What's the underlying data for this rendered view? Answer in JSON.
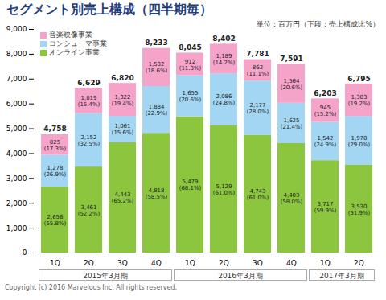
{
  "chart_data": {
    "type": "bar",
    "title": "セグメント別売上構成（四半期毎）",
    "subtitle": "単位：百万円（下段：売上構成比%）",
    "caption": "Copyright (c) 2016 Marvelous Inc. All rights reserved.",
    "categories": [
      "1Q",
      "2Q",
      "3Q",
      "4Q",
      "1Q",
      "2Q",
      "3Q",
      "4Q",
      "1Q",
      "2Q"
    ],
    "periods": [
      "2015年3月期",
      "2015年3月期",
      "2015年3月期",
      "2015年3月期",
      "2016年3月期",
      "2016年3月期",
      "2016年3月期",
      "2016年3月期",
      "2017年3月期",
      "2017年3月期"
    ],
    "stacked": true,
    "data_labels": true,
    "grid": false,
    "legend": "top-left",
    "ylim": [
      0,
      9000
    ],
    "yticks": [
      0,
      {
        "value": 1000,
        "label": "1,000"
      },
      {
        "value": 2000,
        "label": "2,000"
      },
      {
        "value": 3000,
        "label": "3,000"
      },
      {
        "value": 4000,
        "label": "4,000"
      },
      {
        "value": 5000,
        "label": "5,000"
      },
      {
        "value": 6000,
        "label": "6,000"
      },
      {
        "value": 7000,
        "label": "7,000"
      },
      {
        "value": 8000,
        "label": "8,000"
      },
      {
        "value": 9000,
        "label": "9,000"
      }
    ],
    "series": [
      {
        "name": "オンライン事業",
        "color": "#8cc63f",
        "values": [
          2656,
          3461,
          4443,
          4818,
          5479,
          5129,
          4743,
          4403,
          3717,
          3530
        ],
        "value_labels": [
          "2,656",
          "3,461",
          "4,443",
          "4,818",
          "5,479",
          "5,129",
          "4,743",
          "4,403",
          "3,717",
          "3,530"
        ],
        "share_labels": [
          "(55.8%)",
          "(52.2%)",
          "(65.2%)",
          "(58.5%)",
          "(68.1%)",
          "(61.0%)",
          "(61.0%)",
          "(58.0%)",
          "(59.9%)",
          "(51.9%)"
        ]
      },
      {
        "name": "コンシューマ事業",
        "color": "#a3d6f2",
        "values": [
          1278,
          2152,
          1061,
          1884,
          1655,
          2086,
          2177,
          1625,
          1542,
          1970
        ],
        "value_labels": [
          "1,278",
          "2,152",
          "1,061",
          "1,884",
          "1,655",
          "2,086",
          "2,177",
          "1,625",
          "1,542",
          "1,970"
        ],
        "share_labels": [
          "(26.9%)",
          "(32.5%)",
          "(15.6%)",
          "(22.9%)",
          "(20.6%)",
          "(24.8%)",
          "(28.0%)",
          "(21.4%)",
          "(24.9%)",
          "(29.0%)"
        ]
      },
      {
        "name": "音楽映像事業",
        "color": "#f5a3c9",
        "values": [
          825,
          1019,
          1322,
          1532,
          912,
          1189,
          862,
          1564,
          945,
          1303
        ],
        "value_labels": [
          "825",
          "1,019",
          "1,322",
          "1,532",
          "912",
          "1,189",
          "862",
          "1,564",
          "945",
          "1,303"
        ],
        "share_labels": [
          "(17.3%)",
          "(15.4%)",
          "(19.4%)",
          "(18.6%)",
          "(11.3%)",
          "(14.2%)",
          "(11.1%)",
          "(20.6%)",
          "(15.2%)",
          "(19.2%)"
        ]
      }
    ],
    "totals": [
      4758,
      6629,
      6820,
      8233,
      8045,
      8402,
      7781,
      7591,
      6203,
      6795
    ],
    "total_labels": [
      "4,758",
      "6,629",
      "6,820",
      "8,233",
      "8,045",
      "8,402",
      "7,781",
      "7,591",
      "6,203",
      "6,795"
    ]
  }
}
